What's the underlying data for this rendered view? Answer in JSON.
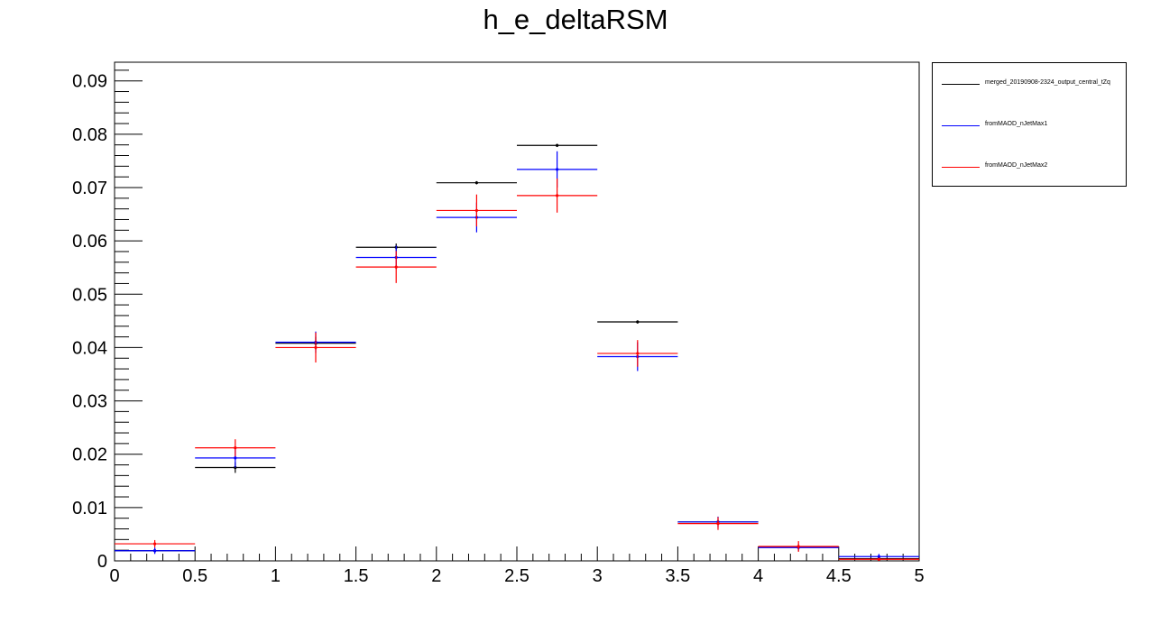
{
  "chart_data": {
    "type": "scatter",
    "title": "h_e_deltaRSM",
    "xlabel": "",
    "ylabel": "",
    "xlim": [
      0,
      5
    ],
    "ylim": [
      0,
      0.0935
    ],
    "bin_edges": [
      0,
      0.5,
      1,
      1.5,
      2,
      2.5,
      3,
      3.5,
      4,
      4.5,
      5
    ],
    "x_ticks": [
      "0",
      "0.5",
      "1",
      "1.5",
      "2",
      "2.5",
      "3",
      "3.5",
      "4",
      "4.5",
      "5"
    ],
    "y_ticks": [
      "0",
      "0.01",
      "0.02",
      "0.03",
      "0.04",
      "0.05",
      "0.06",
      "0.07",
      "0.08",
      "0.09"
    ],
    "grid": false,
    "legend_position": "top-right outside",
    "series": [
      {
        "name": "merged_20190908-2324_output_central_tZq",
        "color": "#000000",
        "x": [
          0.25,
          0.75,
          1.25,
          1.75,
          2.25,
          2.75,
          3.25,
          3.75,
          4.25,
          4.75
        ],
        "values": [
          0.0019,
          0.0175,
          0.0408,
          0.0588,
          0.0709,
          0.0779,
          0.0448,
          0.0073,
          0.0026,
          0.0004
        ],
        "errors": [
          0.0004,
          0.001,
          0.0012,
          0.0007,
          0.0003,
          0.0003,
          0.0003,
          0.0004,
          0.0003,
          0.0002
        ]
      },
      {
        "name": "fromMAOD_nJetMax1",
        "color": "#0000ff",
        "x": [
          0.25,
          0.75,
          1.25,
          1.75,
          2.25,
          2.75,
          3.25,
          3.75,
          4.25,
          4.75
        ],
        "values": [
          0.0019,
          0.0193,
          0.041,
          0.0569,
          0.0644,
          0.0734,
          0.0383,
          0.0073,
          0.0025,
          0.0008
        ],
        "errors": [
          0.0006,
          0.0018,
          0.002,
          0.0022,
          0.0028,
          0.0034,
          0.0027,
          0.001,
          0.0006,
          0.0005
        ]
      },
      {
        "name": "fromMAOD_nJetMax2",
        "color": "#ff0000",
        "x": [
          0.25,
          0.75,
          1.25,
          1.75,
          2.25,
          2.75,
          3.25,
          3.75,
          4.25,
          4.75
        ],
        "values": [
          0.0032,
          0.0212,
          0.04,
          0.0551,
          0.0657,
          0.0685,
          0.0389,
          0.007,
          0.0027,
          0.0003
        ],
        "errors": [
          0.0007,
          0.0016,
          0.0028,
          0.003,
          0.003,
          0.0032,
          0.0025,
          0.0012,
          0.001,
          0.0003
        ]
      }
    ]
  }
}
